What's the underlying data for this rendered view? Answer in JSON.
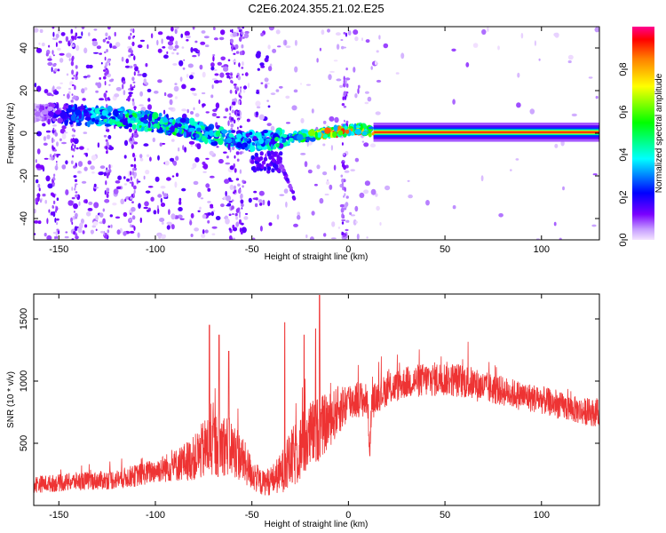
{
  "title": "C2E6.2024.355.21.02.E25",
  "chart_data": [
    {
      "type": "heatmap",
      "xlabel": "Height of straight line (km)",
      "ylabel": "Frequency (Hz)",
      "xlim": [
        -163,
        130
      ],
      "ylim": [
        -50,
        50
      ],
      "xticks": [
        -150,
        -100,
        -50,
        0,
        50,
        100
      ],
      "yticks": [
        -40,
        -20,
        0,
        20,
        40
      ],
      "grid": false,
      "colorbar": {
        "label": "Normalized spectral amplitude",
        "range": [
          0,
          1
        ],
        "ticks": [
          "0.0",
          "0.2",
          "0.4",
          "0.6",
          "0.8"
        ]
      },
      "ridge": {
        "x": [
          -163,
          -150,
          -140,
          -130,
          -120,
          -110,
          -100,
          -90,
          -80,
          -70,
          -60,
          -50,
          -40,
          -30,
          -20,
          -12,
          -5,
          0,
          5,
          10,
          13,
          20,
          50,
          100,
          130
        ],
        "y": [
          10,
          9,
          8.5,
          8,
          7.5,
          6.5,
          5,
          3.5,
          1.5,
          -1,
          -3,
          -3.5,
          -3,
          -2,
          -1,
          0,
          1,
          1.5,
          2,
          1.5,
          0.5,
          0.5,
          0.5,
          0.5,
          0.5
        ],
        "amplitude": [
          0.05,
          0.2,
          0.3,
          0.4,
          0.45,
          0.5,
          0.45,
          0.5,
          0.45,
          0.45,
          0.4,
          0.4,
          0.45,
          0.45,
          0.55,
          0.9,
          0.9,
          0.8,
          0.85,
          0.7,
          0.85,
          0.9,
          0.9,
          0.9,
          0.9
        ]
      }
    },
    {
      "type": "line",
      "xlabel": "Height of straight line (km)",
      "ylabel": "SNR (10 * v/v)",
      "xlim": [
        -163,
        130
      ],
      "ylim": [
        0,
        1700
      ],
      "xticks": [
        -150,
        -100,
        -50,
        0,
        50,
        100
      ],
      "yticks": [
        500,
        1000,
        1500
      ],
      "grid": false,
      "series": [
        {
          "color": "#ee3333",
          "x": [
            -163,
            -150,
            -140,
            -130,
            -120,
            -110,
            -100,
            -90,
            -80,
            -72,
            -65,
            -58,
            -50,
            -45,
            -40,
            -35,
            -30,
            -25,
            -20,
            -15,
            -10,
            -5,
            0,
            5,
            10,
            11,
            12,
            15,
            20,
            30,
            40,
            50,
            60,
            70,
            80,
            90,
            100,
            110,
            120,
            130
          ],
          "values": [
            170,
            180,
            195,
            200,
            210,
            240,
            280,
            320,
            380,
            480,
            500,
            430,
            260,
            180,
            200,
            260,
            360,
            460,
            560,
            620,
            680,
            770,
            830,
            860,
            840,
            400,
            820,
            880,
            930,
            990,
            1010,
            1020,
            1000,
            950,
            920,
            880,
            850,
            800,
            760,
            740
          ],
          "noise": [
            70,
            70,
            75,
            75,
            80,
            90,
            100,
            130,
            180,
            280,
            260,
            220,
            140,
            100,
            120,
            160,
            240,
            280,
            280,
            260,
            220,
            200,
            170,
            150,
            140,
            60,
            140,
            130,
            130,
            130,
            140,
            140,
            140,
            130,
            120,
            120,
            115,
            110,
            110,
            110
          ],
          "peaks": [
            [
              -15,
              1690
            ],
            [
              -17,
              1420
            ],
            [
              -23,
              1370
            ],
            [
              -33,
              1470
            ],
            [
              -72,
              1450
            ],
            [
              -67,
              1370
            ],
            [
              -62,
              1240
            ]
          ]
        }
      ]
    }
  ]
}
